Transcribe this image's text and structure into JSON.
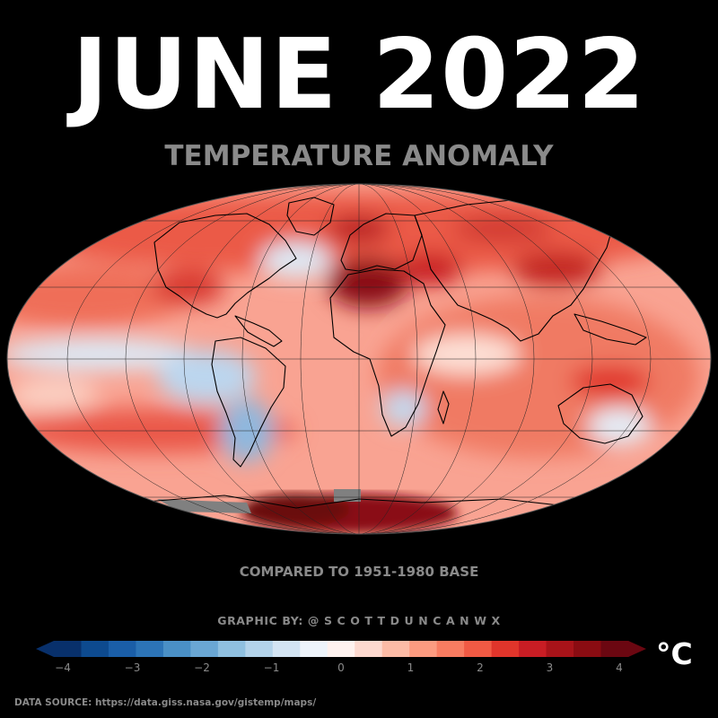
{
  "title": "JUNE 2022",
  "subtitle": "TEMPERATURE ANOMALY",
  "base_note": "COMPARED TO 1951-1980 BASE",
  "credit": "GRAPHIC BY: @ S C O T T D U N C A N W X",
  "unit": "°C",
  "source": "DATA SOURCE: https://data.giss.nasa.gov/gistemp/maps/",
  "colorbar": {
    "min": -4,
    "max": 4,
    "ticks": [
      "−4",
      "−3",
      "−2",
      "−1",
      "0",
      "1",
      "2",
      "3",
      "4"
    ],
    "colors": [
      "#08306b",
      "#0d4a8f",
      "#1a5ea8",
      "#2c74b7",
      "#4a90c6",
      "#6aa7d4",
      "#8fc0e0",
      "#b3d3ea",
      "#d3e4f3",
      "#eef4fb",
      "#fff2ef",
      "#fdd9cf",
      "#fcbba6",
      "#fc9b80",
      "#f87c61",
      "#f15a44",
      "#e0352b",
      "#c81d24",
      "#a81319",
      "#8a0c12",
      "#6b0711"
    ]
  },
  "colors": {
    "background": "#000000",
    "title": "#ffffff",
    "muted_text": "#8a8a8a",
    "warm_anomaly": "#e8463a",
    "cool_anomaly": "#9cc2e4",
    "extreme_warm": "#7a0a0e",
    "no_data": "#808080"
  }
}
